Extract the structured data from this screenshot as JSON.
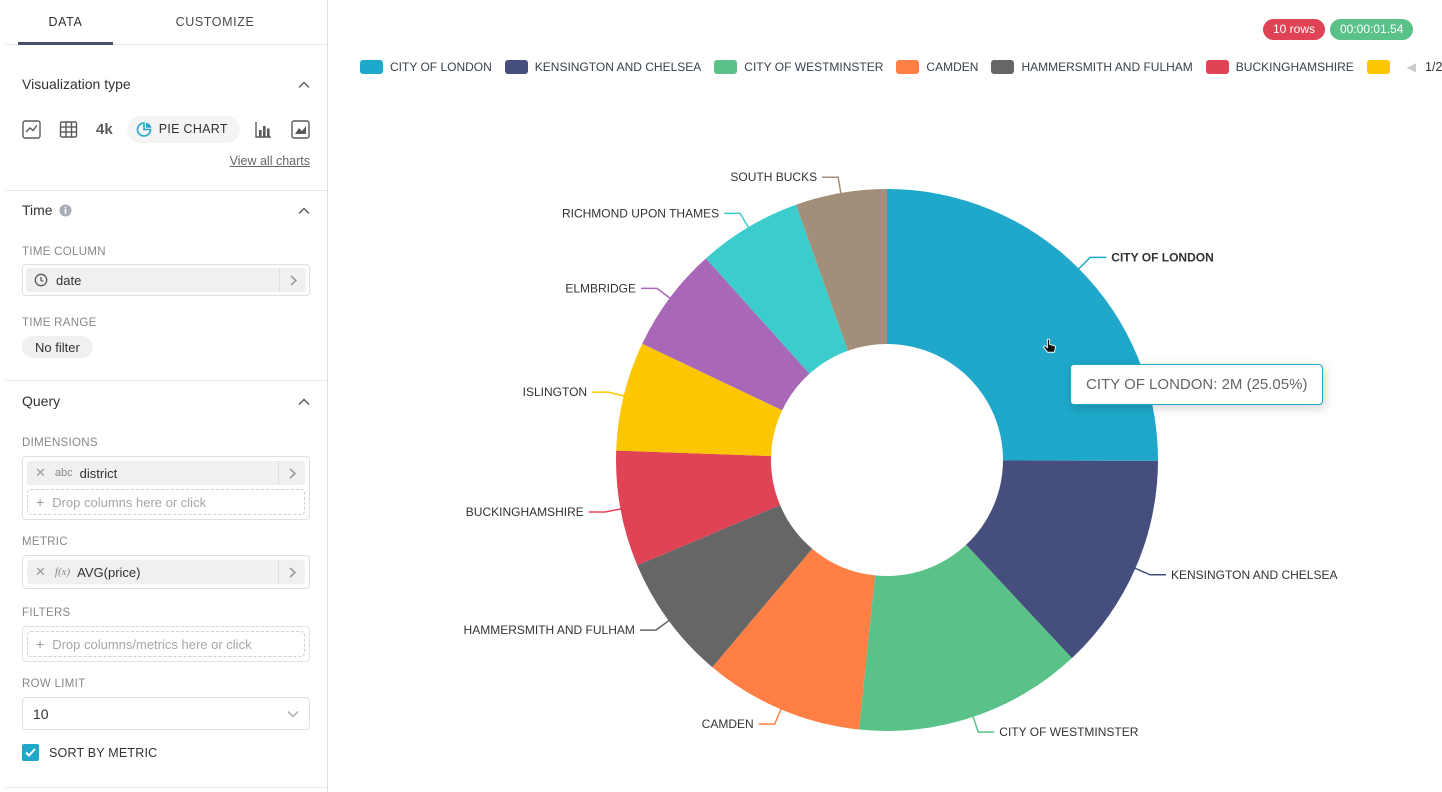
{
  "sidebar": {
    "tabs": {
      "data": "DATA",
      "customize": "CUSTOMIZE"
    },
    "visualization": {
      "title": "Visualization type",
      "selected_type": "PIE CHART",
      "big_number_icon_text": "4k",
      "view_all_link": "View all charts"
    },
    "time": {
      "title": "Time",
      "column_label": "TIME COLUMN",
      "column_value": "date",
      "range_label": "TIME RANGE",
      "range_value": "No filter"
    },
    "query": {
      "title": "Query",
      "dimensions_label": "DIMENSIONS",
      "dimension_badge": "abc",
      "dimension_value": "district",
      "dimensions_placeholder": "Drop columns here or click",
      "metric_label": "METRIC",
      "metric_badge": "f(x)",
      "metric_value": "AVG(price)",
      "filters_label": "FILTERS",
      "filters_placeholder": "Drop columns/metrics here or click",
      "row_limit_label": "ROW LIMIT",
      "row_limit_value": "10",
      "sort_by_metric_label": "SORT BY METRIC",
      "sort_by_metric_checked": true
    }
  },
  "statusbar": {
    "rows_badge": "10 rows",
    "rows_color": "#E04355",
    "duration_badge": "00:00:01.54",
    "duration_color": "#5AC189"
  },
  "legend": {
    "page_indicator": "1/2",
    "prev_arrow_enabled": false,
    "next_arrow_enabled": true,
    "visible_full_items": 6,
    "partial_item_index": 6
  },
  "tooltip": {
    "text": "CITY OF LONDON: 2M (25.05%)",
    "border_color": "#1FA8C9"
  },
  "chart_data": {
    "type": "pie",
    "donut": true,
    "dimension": "district",
    "metric": "AVG(price)",
    "sort_by_metric": true,
    "legend_position": "top",
    "highlighted_slice": "CITY OF LONDON",
    "series": [
      {
        "label": "CITY OF LONDON",
        "percent": 25.05,
        "value_label": "2M",
        "color": "#1FA8C9"
      },
      {
        "label": "KENSINGTON AND CHELSEA",
        "percent": 13.0,
        "color": "#454E7C"
      },
      {
        "label": "CITY OF WESTMINSTER",
        "percent": 13.6,
        "color": "#5AC189"
      },
      {
        "label": "CAMDEN",
        "percent": 9.5,
        "color": "#FF7F44"
      },
      {
        "label": "HAMMERSMITH AND FULHAM",
        "percent": 7.5,
        "color": "#666666"
      },
      {
        "label": "BUCKINGHAMSHIRE",
        "percent": 6.9,
        "color": "#E04355"
      },
      {
        "label": "ISLINGTON",
        "percent": 6.5,
        "color": "#FCC700"
      },
      {
        "label": "ELMBRIDGE",
        "percent": 6.3,
        "color": "#A868B7"
      },
      {
        "label": "RICHMOND UPON THAMES",
        "percent": 6.2,
        "color": "#3CCCCB"
      },
      {
        "label": "SOUTH BUCKS",
        "percent": 5.45,
        "color": "#A38F79"
      }
    ]
  }
}
